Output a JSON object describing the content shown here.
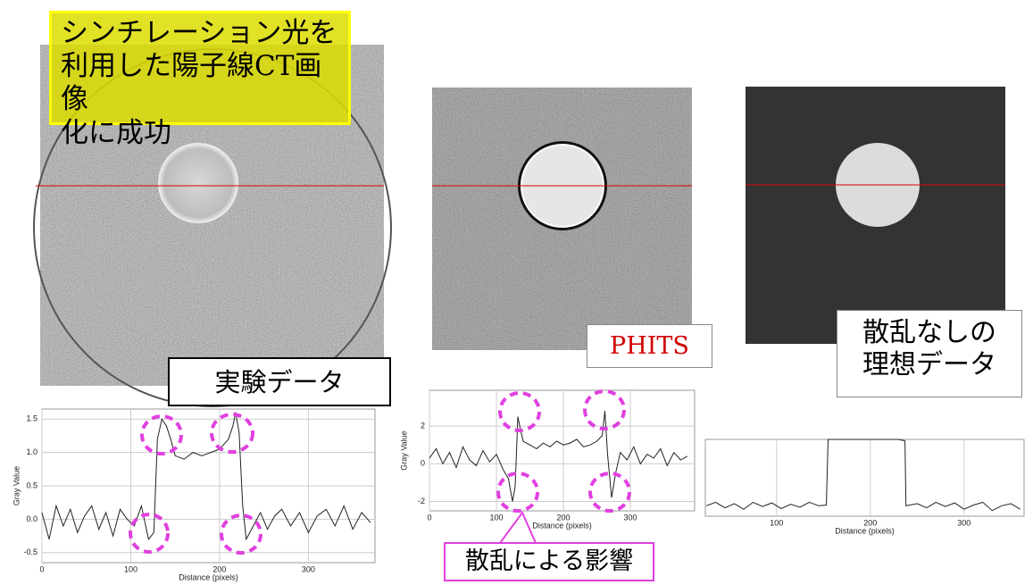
{
  "headline": [
    "シンチレーション光を",
    "利用した陽子線CT画像",
    "化に成功"
  ],
  "experiment_label": "実験データ",
  "phits_label": "PHITS",
  "ideal_label": [
    "散乱なしの",
    "理想データ"
  ],
  "scatter_note": "散乱による影響",
  "chart_data": [
    {
      "type": "line",
      "x_label": "Distance (pixels)",
      "y_label": "Gray Value",
      "color": "#222222",
      "grid": true,
      "xlim": [
        0,
        375
      ],
      "ylim": [
        -0.65,
        1.65
      ],
      "xticks": [
        0,
        100,
        200,
        300
      ],
      "yticks": [
        -0.5,
        {
          "value": 0,
          "label": "0.0"
        },
        0.5,
        {
          "value": 1,
          "label": "1.0"
        },
        1.5
      ],
      "x": [
        0,
        8,
        16,
        24,
        32,
        40,
        48,
        56,
        64,
        72,
        80,
        88,
        96,
        104,
        112,
        120,
        126,
        130,
        135,
        140,
        145,
        150,
        160,
        170,
        180,
        190,
        200,
        210,
        215,
        218,
        222,
        226,
        230,
        238,
        246,
        254,
        262,
        270,
        280,
        290,
        300,
        310,
        320,
        330,
        340,
        350,
        360,
        370
      ],
      "values": [
        0.1,
        -0.3,
        0.2,
        -0.1,
        0.15,
        -0.2,
        0.05,
        0.2,
        -0.15,
        0.1,
        -0.25,
        0.15,
        0,
        -0.1,
        0.2,
        -0.3,
        -0.2,
        1.2,
        1.5,
        1.4,
        1.2,
        0.95,
        0.9,
        1.0,
        0.95,
        1.0,
        1.05,
        1.2,
        1.4,
        1.6,
        1.3,
        0.2,
        -0.3,
        -0.1,
        0.1,
        -0.15,
        0.05,
        0.15,
        -0.1,
        0.1,
        -0.2,
        0.05,
        0.15,
        -0.1,
        0.2,
        -0.15,
        0.1,
        -0.05
      ]
    },
    {
      "type": "line",
      "x_label": "Distance (pixels)",
      "y_label": "Gray Value",
      "color": "#222222",
      "grid": true,
      "xlim": [
        0,
        396
      ],
      "ylim": [
        -2.5,
        3.9
      ],
      "xticks": [
        0,
        100,
        200,
        300
      ],
      "yticks": [
        -2,
        0,
        2
      ],
      "x": [
        0,
        10,
        20,
        30,
        40,
        50,
        60,
        70,
        80,
        90,
        100,
        110,
        118,
        124,
        128,
        132,
        136,
        140,
        150,
        160,
        170,
        180,
        190,
        200,
        210,
        220,
        230,
        240,
        250,
        258,
        262,
        266,
        272,
        278,
        285,
        295,
        305,
        315,
        325,
        335,
        345,
        355,
        365,
        375,
        385
      ],
      "values": [
        0.3,
        0.8,
        0,
        0.6,
        -0.2,
        0.9,
        0.2,
        -0.1,
        0.7,
        0.1,
        0.5,
        -0.3,
        -0.8,
        -2,
        -1.2,
        2.5,
        1.8,
        1.2,
        1,
        0.8,
        1.1,
        0.9,
        1.2,
        1,
        1.1,
        1.3,
        0.9,
        1,
        1.2,
        1.5,
        2.8,
        0.5,
        -1.8,
        -0.5,
        0.6,
        0.2,
        0.9,
        0,
        0.5,
        0.3,
        0.8,
        -0.1,
        0.6,
        0.2,
        0.4
      ]
    },
    {
      "type": "line",
      "x_label": "Distance (pixels)",
      "color": "#222222",
      "grid": true,
      "xlim": [
        24,
        364
      ],
      "ylim": [
        -0.1,
        1.0
      ],
      "xticks": [
        100,
        200,
        300
      ],
      "x": [
        25,
        35,
        45,
        55,
        65,
        75,
        85,
        95,
        105,
        115,
        125,
        135,
        145,
        153,
        155,
        180,
        200,
        230,
        237,
        238,
        250,
        260,
        270,
        280,
        290,
        300,
        310,
        320,
        330,
        340,
        350,
        360
      ],
      "values": [
        0.05,
        0.1,
        0.02,
        0.08,
        0.0,
        0.1,
        0.04,
        0.09,
        0.01,
        0.07,
        0.03,
        0.1,
        0.05,
        0.06,
        1,
        1,
        1,
        1,
        0.98,
        0.05,
        0.08,
        0.02,
        0.1,
        0.04,
        0.09,
        0.0,
        0.06,
        0.1,
        -0.02,
        0.05,
        0.08,
        0.0
      ]
    }
  ]
}
